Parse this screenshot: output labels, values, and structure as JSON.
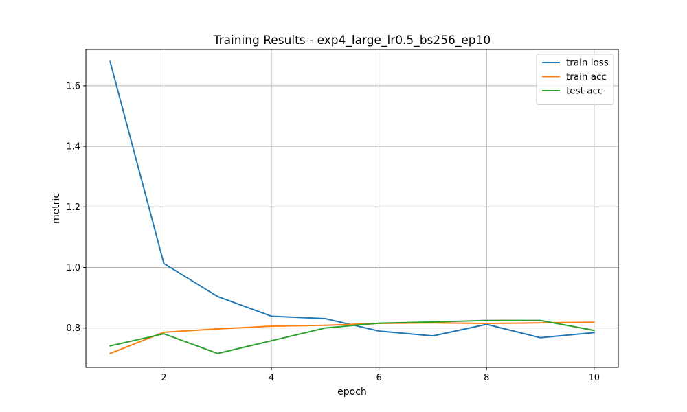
{
  "chart_data": {
    "type": "line",
    "title": "Training Results - exp4_large_lr0.5_bs256_ep10",
    "xlabel": "epoch",
    "ylabel": "metric",
    "xlim": [
      0.55,
      10.45
    ],
    "ylim": [
      0.67,
      1.72
    ],
    "xticks": [
      2,
      4,
      6,
      8,
      10
    ],
    "yticks": [
      0.8,
      1.0,
      1.2,
      1.4,
      1.6
    ],
    "grid": true,
    "legend_position": "top-right",
    "x": [
      1,
      2,
      3,
      4,
      5,
      6,
      7,
      8,
      9,
      10
    ],
    "series": [
      {
        "name": "train loss",
        "color": "#1f77b4",
        "values": [
          1.68,
          1.013,
          0.904,
          0.839,
          0.831,
          0.79,
          0.774,
          0.812,
          0.768,
          0.785
        ]
      },
      {
        "name": "train acc",
        "color": "#ff7f0e",
        "values": [
          0.716,
          0.786,
          0.797,
          0.806,
          0.809,
          0.815,
          0.817,
          0.815,
          0.817,
          0.819
        ]
      },
      {
        "name": "test acc",
        "color": "#2ca02c",
        "values": [
          0.741,
          0.781,
          0.716,
          0.758,
          0.8,
          0.816,
          0.82,
          0.825,
          0.825,
          0.792
        ]
      }
    ]
  }
}
